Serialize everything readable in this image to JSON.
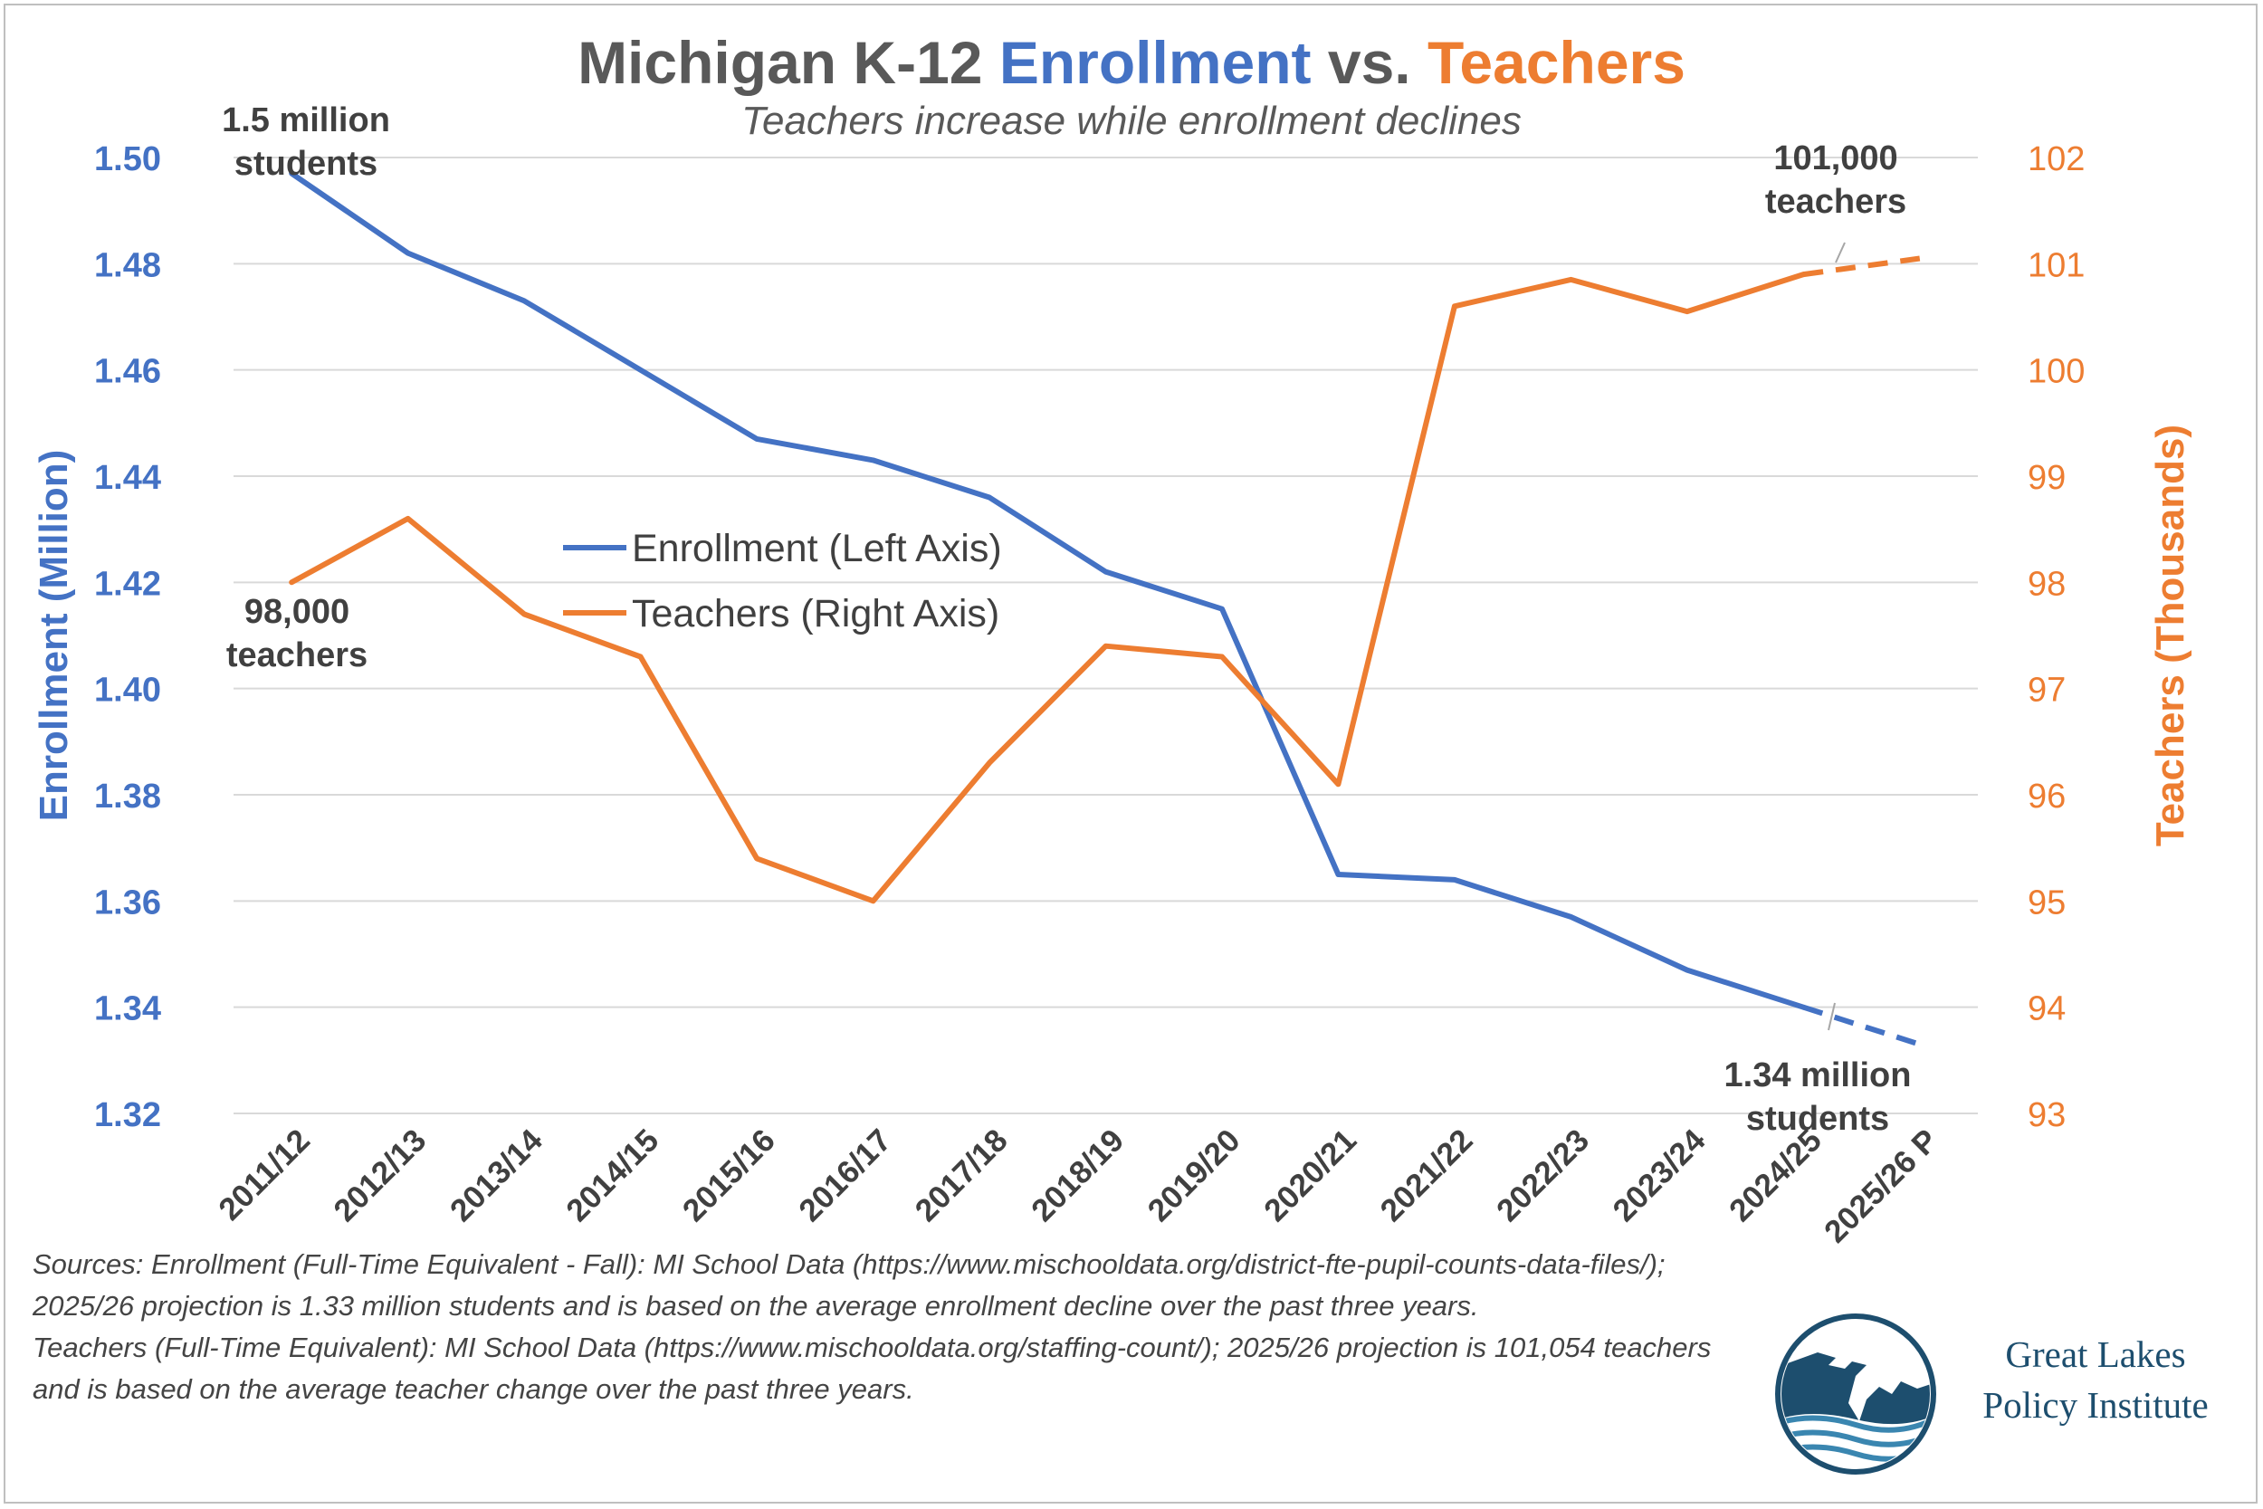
{
  "chart_data": {
    "type": "line",
    "title": {
      "prefix": "Michigan K-12 ",
      "enrollment_word": "Enrollment",
      "middle": " vs. ",
      "teachers_word": "Teachers"
    },
    "subtitle": "Teachers increase while enrollment declines",
    "categories": [
      "2011/12",
      "2012/13",
      "2013/14",
      "2014/15",
      "2015/16",
      "2016/17",
      "2017/18",
      "2018/19",
      "2019/20",
      "2020/21",
      "2021/22",
      "2022/23",
      "2023/24",
      "2024/25",
      "2025/26 P"
    ],
    "series": [
      {
        "name": "Enrollment (Left Axis)",
        "axis": "left",
        "color": "#4472C4",
        "values": [
          1.497,
          1.482,
          1.473,
          1.46,
          1.447,
          1.443,
          1.436,
          1.422,
          1.415,
          1.365,
          1.364,
          1.357,
          1.347,
          1.34,
          1.333
        ],
        "projected_from_index": 13
      },
      {
        "name": "Teachers (Right Axis)",
        "axis": "right",
        "color": "#ED7D31",
        "values": [
          98.0,
          98.6,
          97.7,
          97.3,
          95.4,
          95.0,
          96.3,
          97.4,
          97.3,
          96.1,
          100.6,
          100.85,
          100.55,
          100.9,
          101.05
        ],
        "projected_from_index": 13
      }
    ],
    "y_left": {
      "label": "Enrollment (Million)",
      "min": 1.32,
      "max": 1.5,
      "ticks": [
        "1.32",
        "1.34",
        "1.36",
        "1.38",
        "1.40",
        "1.42",
        "1.44",
        "1.46",
        "1.48",
        "1.50"
      ]
    },
    "y_right": {
      "label": "Teachers (Thousands)",
      "min": 93,
      "max": 102,
      "ticks": [
        "93",
        "94",
        "95",
        "96",
        "97",
        "98",
        "99",
        "100",
        "101",
        "102"
      ]
    },
    "legend_position": "center-left",
    "annotations": [
      {
        "lines": [
          "1.5 million",
          "students"
        ],
        "series": "enrollment",
        "index": 0
      },
      {
        "lines": [
          "98,000",
          "teachers"
        ],
        "series": "teachers",
        "index": 0
      },
      {
        "lines": [
          "101,000",
          "teachers"
        ],
        "series": "teachers",
        "index": 13
      },
      {
        "lines": [
          "1.34 million",
          "students"
        ],
        "series": "enrollment",
        "index": 13
      }
    ],
    "grid": true
  },
  "sources": {
    "line1": "Sources: Enrollment (Full-Time Equivalent - Fall): MI School Data (https://www.mischooldata.org/district-fte-pupil-counts-data-files/); 2025/26 projection is 1.33 million students and is based on the average enrollment decline over the past three years.",
    "line2": "Teachers (Full-Time Equivalent): MI School Data (https://www.mischooldata.org/staffing-count/); 2025/26 projection is 101,054 teachers and is based on the average teacher change over the past three years."
  },
  "logo": {
    "line1": "Great Lakes",
    "line2": "Policy Institute"
  },
  "colors": {
    "enrollment": "#4472C4",
    "teachers": "#ED7D31",
    "title": "#595959",
    "grid": "#d9d9d9",
    "annotation": "#404040"
  }
}
